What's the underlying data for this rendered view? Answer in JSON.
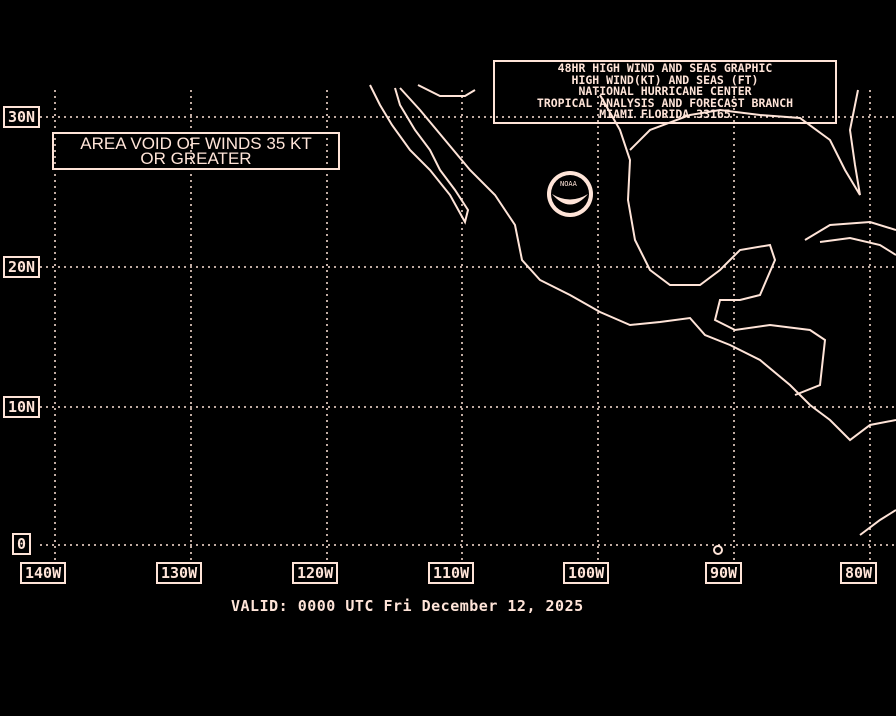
{
  "title_box": {
    "lines": [
      "48HR HIGH WIND AND SEAS GRAPHIC",
      "HIGH WIND(KT) AND SEAS (FT)",
      "NATIONAL HURRICANE CENTER",
      "TROPICAL ANALYSIS AND FORECAST BRANCH",
      "MIAMI FLORIDA  33165"
    ]
  },
  "annotation": {
    "lines": [
      "AREA VOID OF WINDS 35 KT",
      "OR GREATER"
    ]
  },
  "lat_labels": [
    "30N",
    "20N",
    "10N",
    "0"
  ],
  "lon_labels": [
    "140W",
    "130W",
    "120W",
    "110W",
    "100W",
    "90W",
    "80W"
  ],
  "valid_time": "VALID: 0000 UTC Fri December 12, 2025",
  "logo": {
    "text": "NOAA"
  },
  "colors": {
    "background": "#000000",
    "foreground": "#ffe4d8"
  }
}
